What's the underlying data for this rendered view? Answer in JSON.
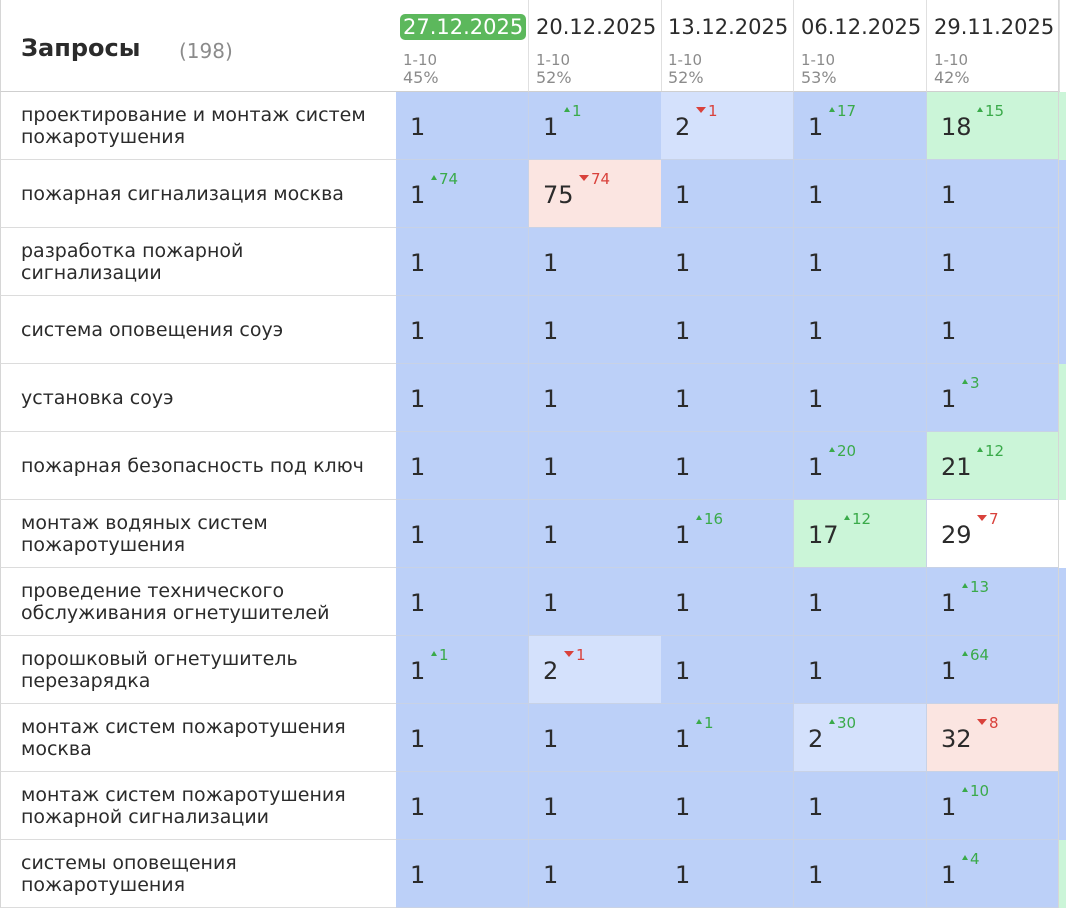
{
  "header": {
    "title": "Запросы",
    "count": "(198)"
  },
  "colors": {
    "blue": "#bcd0f8",
    "light_blue": "#d4e1fc",
    "green": "#cbf5d8",
    "red": "#fbe5e1",
    "white": "#ffffff",
    "active_date": "#5cb85c",
    "up": "#3aaa4a",
    "down": "#d9413b"
  },
  "columns": [
    {
      "date": "27.12.2025",
      "range": "1-10",
      "pct": "45%",
      "active": true
    },
    {
      "date": "20.12.2025",
      "range": "1-10",
      "pct": "52%"
    },
    {
      "date": "13.12.2025",
      "range": "1-10",
      "pct": "52%"
    },
    {
      "date": "06.12.2025",
      "range": "1-10",
      "pct": "53%"
    },
    {
      "date": "29.11.2025",
      "range": "1-10",
      "pct": "42%"
    }
  ],
  "rows": [
    {
      "query": "проектирование и монтаж систем пожаротушения",
      "cells": [
        {
          "v": "1",
          "bg": "blue"
        },
        {
          "v": "1",
          "bg": "blue",
          "d": "up",
          "c": "1"
        },
        {
          "v": "2",
          "bg": "light_blue",
          "d": "down",
          "c": "1"
        },
        {
          "v": "1",
          "bg": "blue",
          "d": "up",
          "c": "17"
        },
        {
          "v": "18",
          "bg": "green",
          "d": "up",
          "c": "15"
        }
      ],
      "edge": "green"
    },
    {
      "query": "пожарная сигнализация москва",
      "cells": [
        {
          "v": "1",
          "bg": "blue",
          "d": "up",
          "c": "74"
        },
        {
          "v": "75",
          "bg": "red",
          "d": "down",
          "c": "74"
        },
        {
          "v": "1",
          "bg": "blue"
        },
        {
          "v": "1",
          "bg": "blue"
        },
        {
          "v": "1",
          "bg": "blue"
        }
      ],
      "edge": "blue"
    },
    {
      "query": "разработка пожарной сигнализации",
      "cells": [
        {
          "v": "1",
          "bg": "blue"
        },
        {
          "v": "1",
          "bg": "blue"
        },
        {
          "v": "1",
          "bg": "blue"
        },
        {
          "v": "1",
          "bg": "blue"
        },
        {
          "v": "1",
          "bg": "blue"
        }
      ],
      "edge": "blue"
    },
    {
      "query": "система оповещения соуэ",
      "cells": [
        {
          "v": "1",
          "bg": "blue"
        },
        {
          "v": "1",
          "bg": "blue"
        },
        {
          "v": "1",
          "bg": "blue"
        },
        {
          "v": "1",
          "bg": "blue"
        },
        {
          "v": "1",
          "bg": "blue"
        }
      ],
      "edge": "blue"
    },
    {
      "query": "установка соуэ",
      "cells": [
        {
          "v": "1",
          "bg": "blue"
        },
        {
          "v": "1",
          "bg": "blue"
        },
        {
          "v": "1",
          "bg": "blue"
        },
        {
          "v": "1",
          "bg": "blue"
        },
        {
          "v": "1",
          "bg": "blue",
          "d": "up",
          "c": "3"
        }
      ],
      "edge": "green"
    },
    {
      "query": "пожарная безопасность под ключ",
      "cells": [
        {
          "v": "1",
          "bg": "blue"
        },
        {
          "v": "1",
          "bg": "blue"
        },
        {
          "v": "1",
          "bg": "blue"
        },
        {
          "v": "1",
          "bg": "blue",
          "d": "up",
          "c": "20"
        },
        {
          "v": "21",
          "bg": "green",
          "d": "up",
          "c": "12"
        }
      ],
      "edge": "green"
    },
    {
      "query": "монтаж водяных систем пожаротушения",
      "cells": [
        {
          "v": "1",
          "bg": "blue"
        },
        {
          "v": "1",
          "bg": "blue"
        },
        {
          "v": "1",
          "bg": "blue",
          "d": "up",
          "c": "16"
        },
        {
          "v": "17",
          "bg": "green",
          "d": "up",
          "c": "12"
        },
        {
          "v": "29",
          "bg": "white",
          "d": "down",
          "c": "7"
        }
      ],
      "edge": "white"
    },
    {
      "query": "проведение технического обслуживания огнетушителей",
      "cells": [
        {
          "v": "1",
          "bg": "blue"
        },
        {
          "v": "1",
          "bg": "blue"
        },
        {
          "v": "1",
          "bg": "blue"
        },
        {
          "v": "1",
          "bg": "blue"
        },
        {
          "v": "1",
          "bg": "blue",
          "d": "up",
          "c": "13"
        }
      ],
      "edge": "blue"
    },
    {
      "query": "порошковый огнетушитель перезарядка",
      "cells": [
        {
          "v": "1",
          "bg": "blue",
          "d": "up",
          "c": "1"
        },
        {
          "v": "2",
          "bg": "light_blue",
          "d": "down",
          "c": "1"
        },
        {
          "v": "1",
          "bg": "blue"
        },
        {
          "v": "1",
          "bg": "blue"
        },
        {
          "v": "1",
          "bg": "blue",
          "d": "up",
          "c": "64"
        }
      ],
      "edge": "blue"
    },
    {
      "query": "монтаж систем пожаротушения москва",
      "cells": [
        {
          "v": "1",
          "bg": "blue"
        },
        {
          "v": "1",
          "bg": "blue"
        },
        {
          "v": "1",
          "bg": "blue",
          "d": "up",
          "c": "1"
        },
        {
          "v": "2",
          "bg": "light_blue",
          "d": "up",
          "c": "30"
        },
        {
          "v": "32",
          "bg": "red",
          "d": "down",
          "c": "8"
        }
      ],
      "edge": "blue"
    },
    {
      "query": "монтаж систем пожаротушения пожарной сигнализации",
      "cells": [
        {
          "v": "1",
          "bg": "blue"
        },
        {
          "v": "1",
          "bg": "blue"
        },
        {
          "v": "1",
          "bg": "blue"
        },
        {
          "v": "1",
          "bg": "blue"
        },
        {
          "v": "1",
          "bg": "blue",
          "d": "up",
          "c": "10"
        }
      ],
      "edge": "blue"
    },
    {
      "query": "системы оповещения пожаротушения",
      "cells": [
        {
          "v": "1",
          "bg": "blue"
        },
        {
          "v": "1",
          "bg": "blue"
        },
        {
          "v": "1",
          "bg": "blue"
        },
        {
          "v": "1",
          "bg": "blue"
        },
        {
          "v": "1",
          "bg": "blue",
          "d": "up",
          "c": "4"
        }
      ],
      "edge": "green"
    }
  ]
}
